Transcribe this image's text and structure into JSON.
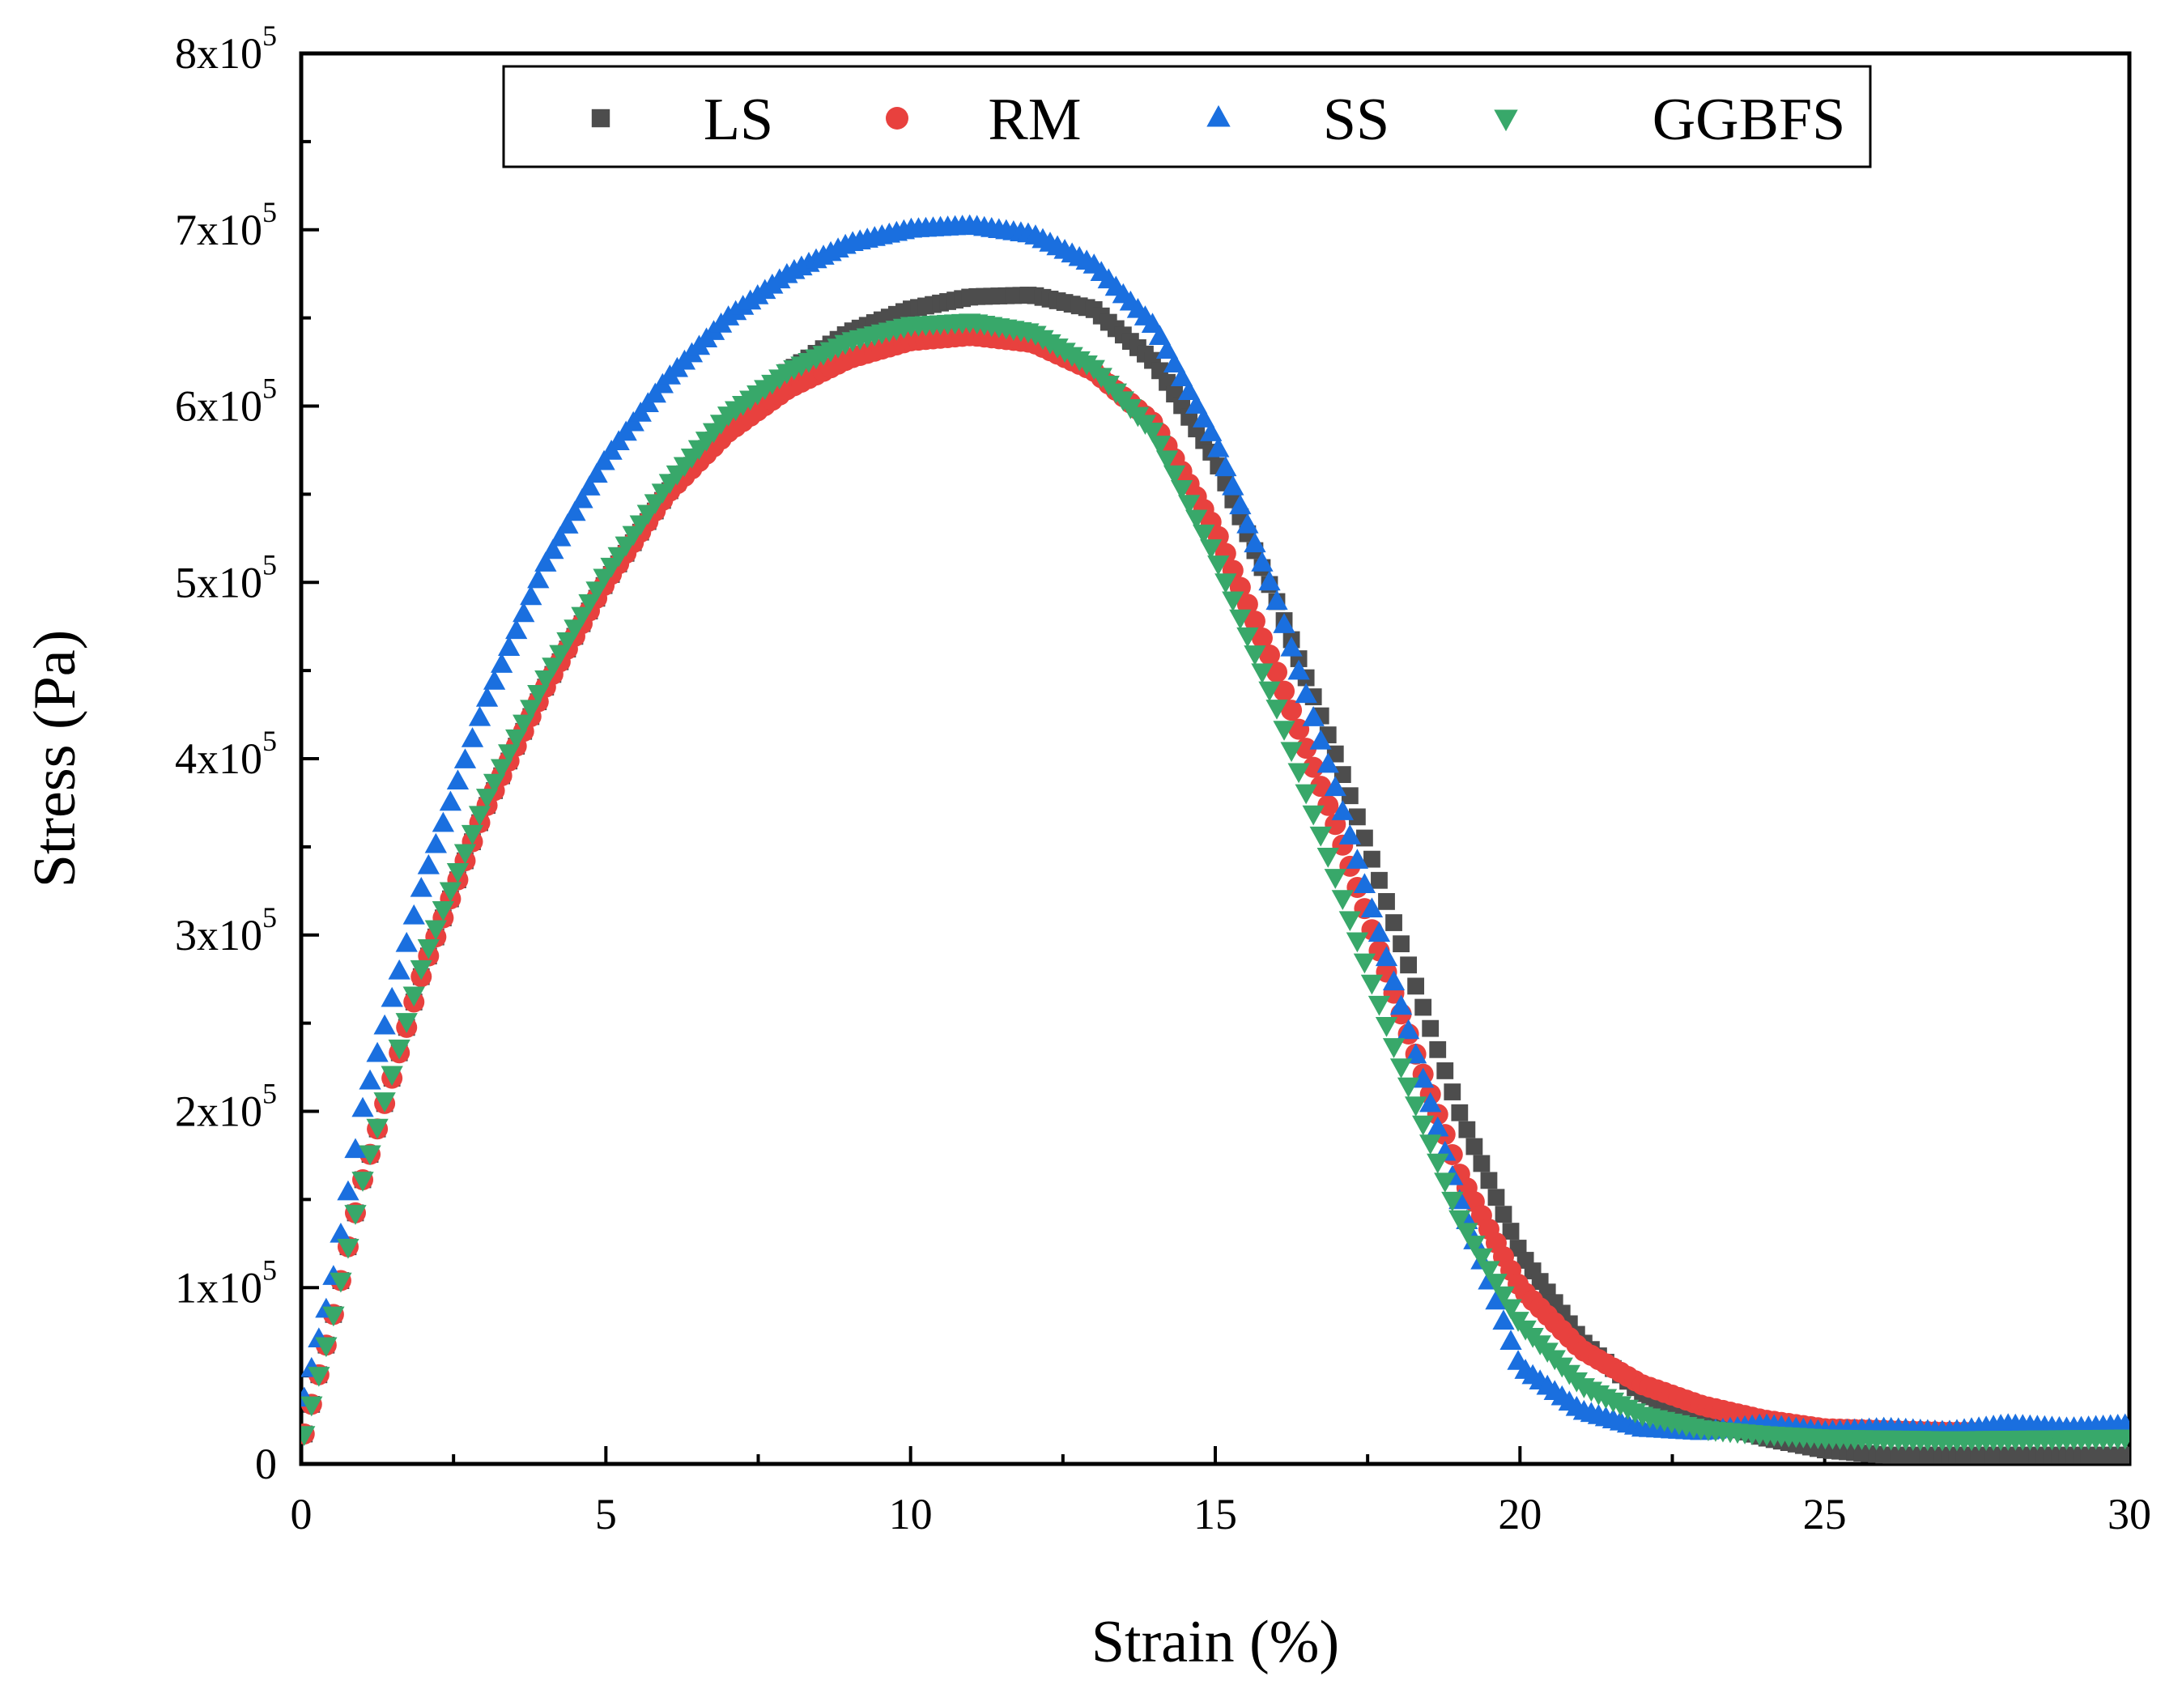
{
  "chart_data": {
    "type": "scatter",
    "title": "",
    "xlabel": "Strain (%)",
    "ylabel": "Stress (Pa)",
    "xlim": [
      0,
      30
    ],
    "ylim": [
      0,
      800000
    ],
    "grid": false,
    "legend_position": "top",
    "x_ticks": [
      "0",
      "5",
      "10",
      "15",
      "20",
      "25",
      "30"
    ],
    "y_ticks": [
      {
        "mantissa": "0",
        "exp": ""
      },
      {
        "mantissa": "1x10",
        "exp": "5"
      },
      {
        "mantissa": "2x10",
        "exp": "5"
      },
      {
        "mantissa": "3x10",
        "exp": "5"
      },
      {
        "mantissa": "4x10",
        "exp": "5"
      },
      {
        "mantissa": "5x10",
        "exp": "5"
      },
      {
        "mantissa": "6x10",
        "exp": "5"
      },
      {
        "mantissa": "7x10",
        "exp": "5"
      },
      {
        "mantissa": "8x10",
        "exp": "5"
      }
    ],
    "series": [
      {
        "name": "LS",
        "marker": "square",
        "color": "#4d4d4d",
        "points": [
          [
            0,
            10000
          ],
          [
            0.5,
            80000
          ],
          [
            1,
            160000
          ],
          [
            2,
            280000
          ],
          [
            3,
            370000
          ],
          [
            4,
            440000
          ],
          [
            5,
            500000
          ],
          [
            6,
            550000
          ],
          [
            7,
            590000
          ],
          [
            8,
            620000
          ],
          [
            9,
            642000
          ],
          [
            10,
            655000
          ],
          [
            11,
            662000
          ],
          [
            12,
            663000
          ],
          [
            13,
            655000
          ],
          [
            14,
            625000
          ],
          [
            15,
            570000
          ],
          [
            16,
            490000
          ],
          [
            17,
            400000
          ],
          [
            18,
            300000
          ],
          [
            19,
            200000
          ],
          [
            20,
            120000
          ],
          [
            21,
            70000
          ],
          [
            22,
            40000
          ],
          [
            23,
            25000
          ],
          [
            24,
            15000
          ],
          [
            25,
            8000
          ],
          [
            26,
            5000
          ],
          [
            27,
            5000
          ],
          [
            28,
            5000
          ],
          [
            30,
            5000
          ]
        ]
      },
      {
        "name": "RM",
        "marker": "circle",
        "color": "#e8413e",
        "points": [
          [
            0,
            10000
          ],
          [
            0.5,
            80000
          ],
          [
            1,
            160000
          ],
          [
            2,
            280000
          ],
          [
            3,
            370000
          ],
          [
            4,
            440000
          ],
          [
            5,
            500000
          ],
          [
            6,
            550000
          ],
          [
            7,
            585000
          ],
          [
            8,
            610000
          ],
          [
            9,
            627000
          ],
          [
            10,
            637000
          ],
          [
            11,
            640000
          ],
          [
            12,
            636000
          ],
          [
            13,
            620000
          ],
          [
            14,
            590000
          ],
          [
            15,
            530000
          ],
          [
            16,
            450000
          ],
          [
            17,
            360000
          ],
          [
            18,
            260000
          ],
          [
            19,
            165000
          ],
          [
            20,
            100000
          ],
          [
            21,
            65000
          ],
          [
            22,
            45000
          ],
          [
            23,
            33000
          ],
          [
            24,
            25000
          ],
          [
            25,
            20000
          ],
          [
            27,
            18000
          ],
          [
            30,
            18000
          ]
        ]
      },
      {
        "name": "SS",
        "marker": "triangle-up",
        "color": "#1a6fdf",
        "points": [
          [
            0,
            30000
          ],
          [
            0.5,
            100000
          ],
          [
            1,
            200000
          ],
          [
            2,
            330000
          ],
          [
            3,
            430000
          ],
          [
            4,
            510000
          ],
          [
            5,
            570000
          ],
          [
            6,
            615000
          ],
          [
            7,
            650000
          ],
          [
            8,
            675000
          ],
          [
            9,
            692000
          ],
          [
            10,
            700000
          ],
          [
            11,
            702000
          ],
          [
            12,
            697000
          ],
          [
            13,
            680000
          ],
          [
            14,
            645000
          ],
          [
            15,
            580000
          ],
          [
            16,
            490000
          ],
          [
            17,
            380000
          ],
          [
            18,
            265000
          ],
          [
            19,
            150000
          ],
          [
            20,
            55000
          ],
          [
            21,
            30000
          ],
          [
            22,
            20000
          ],
          [
            23,
            18000
          ],
          [
            24,
            22000
          ],
          [
            25,
            18000
          ],
          [
            26,
            20000
          ],
          [
            27,
            18000
          ],
          [
            28,
            22000
          ],
          [
            29,
            20000
          ],
          [
            30,
            22000
          ]
        ]
      },
      {
        "name": "GGBFS",
        "marker": "triangle-down",
        "color": "#38a86a",
        "points": [
          [
            0,
            10000
          ],
          [
            0.5,
            80000
          ],
          [
            1,
            160000
          ],
          [
            2,
            285000
          ],
          [
            3,
            375000
          ],
          [
            4,
            445000
          ],
          [
            5,
            505000
          ],
          [
            6,
            555000
          ],
          [
            7,
            595000
          ],
          [
            8,
            620000
          ],
          [
            9,
            637000
          ],
          [
            10,
            646000
          ],
          [
            11,
            648000
          ],
          [
            12,
            642000
          ],
          [
            13,
            622000
          ],
          [
            14,
            585000
          ],
          [
            15,
            515000
          ],
          [
            16,
            430000
          ],
          [
            17,
            330000
          ],
          [
            18,
            230000
          ],
          [
            19,
            140000
          ],
          [
            20,
            80000
          ],
          [
            21,
            45000
          ],
          [
            22,
            28000
          ],
          [
            23,
            20000
          ],
          [
            24,
            17000
          ],
          [
            25,
            15000
          ],
          [
            27,
            14000
          ],
          [
            30,
            15000
          ]
        ]
      }
    ]
  }
}
